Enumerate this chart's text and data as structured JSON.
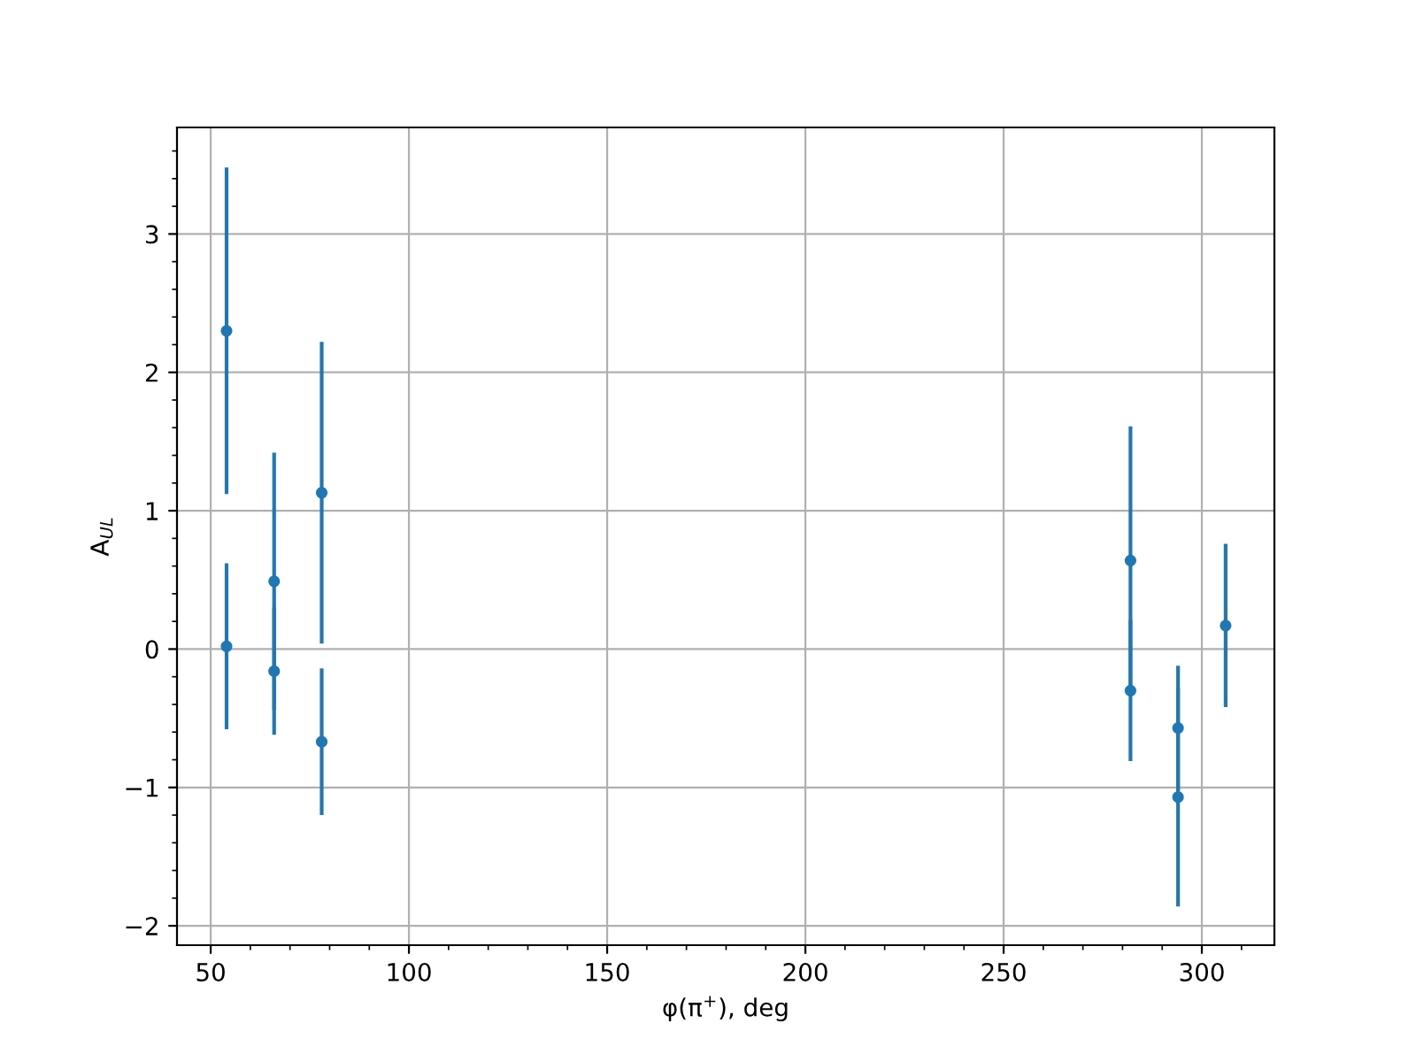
{
  "chart_data": {
    "type": "scatter",
    "xlabel": "φ(π$^{+}$), deg",
    "ylabel": "A$_{UL}$",
    "x": [
      54,
      54,
      66,
      66,
      78,
      78,
      282,
      282,
      294,
      294,
      306
    ],
    "values": [
      2.3,
      0.02,
      0.49,
      -0.16,
      1.13,
      -0.67,
      0.64,
      -0.3,
      -0.57,
      -1.07,
      0.17
    ],
    "errors": [
      1.18,
      0.6,
      0.93,
      0.46,
      1.09,
      0.53,
      0.97,
      0.51,
      0.45,
      0.79,
      0.59
    ],
    "color": "#1f77b4",
    "marker": "circle",
    "xlim": [
      41.5,
      318.3
    ],
    "ylim": [
      -2.14,
      3.77
    ],
    "xticks": [
      50,
      100,
      150,
      200,
      250,
      300
    ],
    "yticks": [
      -2,
      -1,
      0,
      1,
      2,
      3
    ],
    "grid": true
  }
}
